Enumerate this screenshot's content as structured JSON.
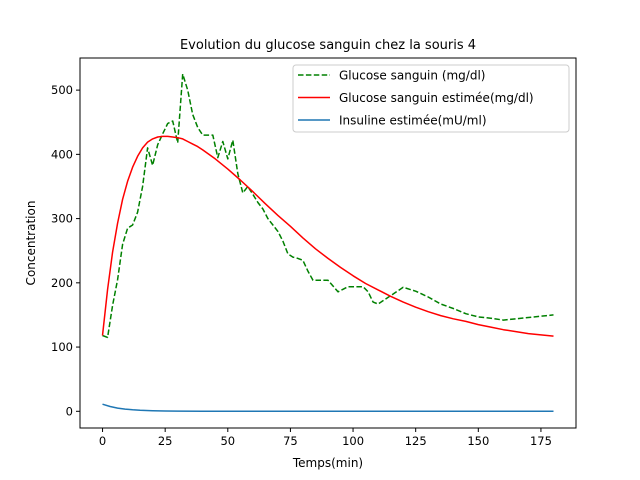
{
  "chart_data": {
    "type": "line",
    "title": "Evolution du glucose sanguin chez la souris 4",
    "xlabel": "Temps(min)",
    "ylabel": "Concentration",
    "xlim": [
      -9,
      189
    ],
    "ylim": [
      -26,
      550
    ],
    "xticks": [
      0,
      25,
      50,
      75,
      100,
      125,
      150,
      175
    ],
    "yticks": [
      0,
      100,
      200,
      300,
      400,
      500
    ],
    "grid": false,
    "legend_position": "upper-right",
    "series": [
      {
        "name": "Glucose sanguin (mg/dl)",
        "color": "#008000",
        "style": "dashed",
        "x": [
          0,
          2,
          4,
          6,
          8,
          10,
          12,
          14,
          16,
          18,
          20,
          22,
          24,
          26,
          28,
          30,
          32,
          34,
          36,
          38,
          40,
          42,
          44,
          46,
          48,
          50,
          52,
          54,
          56,
          58,
          60,
          62,
          64,
          66,
          68,
          70,
          72,
          74,
          76,
          78,
          80,
          82,
          84,
          86,
          88,
          90,
          92,
          94,
          96,
          98,
          100,
          102,
          104,
          106,
          108,
          110,
          115,
          120,
          125,
          130,
          135,
          140,
          145,
          150,
          155,
          160,
          165,
          170,
          175,
          180
        ],
        "y": [
          118,
          115,
          165,
          205,
          260,
          285,
          290,
          310,
          350,
          410,
          383,
          415,
          432,
          448,
          452,
          418,
          525,
          500,
          462,
          442,
          430,
          430,
          430,
          395,
          420,
          393,
          422,
          370,
          340,
          350,
          338,
          325,
          315,
          300,
          290,
          280,
          265,
          245,
          240,
          238,
          235,
          218,
          204,
          204,
          204,
          204,
          195,
          186,
          190,
          194,
          194,
          194,
          194,
          186,
          170,
          167,
          180,
          193,
          187,
          178,
          167,
          160,
          152,
          147,
          145,
          142,
          144,
          146,
          148,
          150
        ]
      },
      {
        "name": "Glucose sanguin estimée(mg/dl)",
        "color": "#ff0000",
        "style": "solid",
        "x": [
          0,
          2,
          4,
          6,
          8,
          10,
          12,
          14,
          16,
          18,
          20,
          22,
          24,
          26,
          28,
          30,
          32,
          34,
          36,
          38,
          40,
          45,
          50,
          55,
          60,
          65,
          70,
          75,
          80,
          85,
          90,
          95,
          100,
          105,
          110,
          115,
          120,
          125,
          130,
          135,
          140,
          145,
          150,
          155,
          160,
          165,
          170,
          175,
          180
        ],
        "y": [
          118,
          190,
          248,
          293,
          330,
          358,
          380,
          397,
          410,
          419,
          424,
          427,
          428,
          428,
          427,
          426,
          424,
          420,
          416,
          412,
          407,
          393,
          377,
          360,
          342,
          323,
          305,
          288,
          270,
          253,
          238,
          224,
          211,
          199,
          189,
          179,
          170,
          162,
          155,
          149,
          144,
          140,
          135,
          131,
          127,
          124,
          121,
          119,
          117
        ]
      },
      {
        "name": "Insuline estimée(mU/ml)",
        "color": "#1f77b4",
        "style": "solid",
        "x": [
          0,
          3,
          6,
          9,
          12,
          15,
          20,
          25,
          30,
          40,
          50,
          75,
          100,
          125,
          150,
          175,
          180
        ],
        "y": [
          11,
          7.5,
          5,
          3.4,
          2.3,
          1.6,
          0.9,
          0.5,
          0.3,
          0.1,
          0,
          0,
          0,
          0,
          0,
          0,
          0
        ]
      }
    ]
  }
}
